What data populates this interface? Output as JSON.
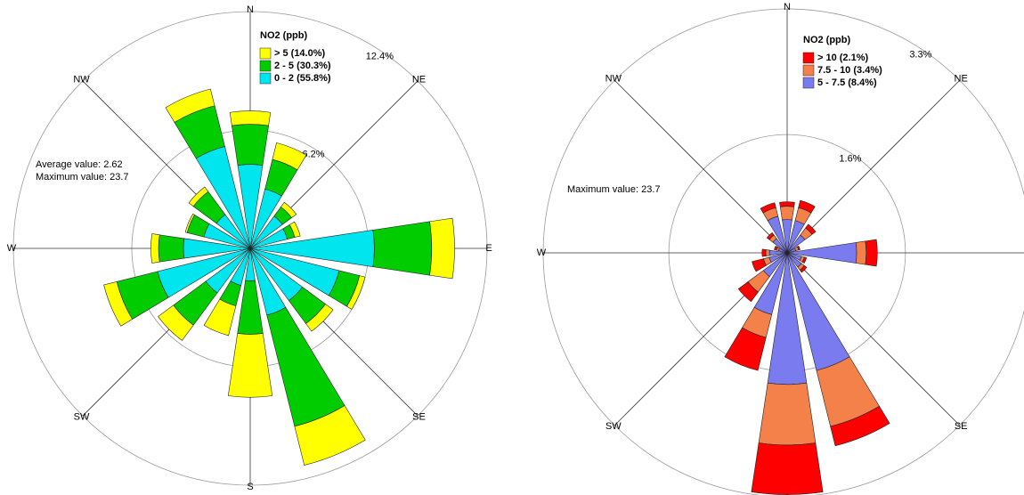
{
  "chart_data": [
    {
      "type": "wind-rose",
      "legend_title": "NO2 (ppb)",
      "categories": [
        "N",
        null,
        "NE",
        null,
        "E",
        null,
        "SE",
        null,
        "S",
        null,
        "SW",
        null,
        "W",
        null,
        "NW",
        null
      ],
      "series": [
        {
          "name": "> 5 (14.0%)",
          "color": "#ffff00",
          "values": [
            0.7,
            0.9,
            0.3,
            0.3,
            1.2,
            0.3,
            0.5,
            2.1,
            3.3,
            1.6,
            1.0,
            0.7,
            0.4,
            0.1,
            0.3,
            0.9
          ]
        },
        {
          "name": "2 - 5 (30.3%)",
          "color": "#00cc00",
          "values": [
            2.1,
            1.6,
            0.6,
            0.4,
            3.0,
            1.1,
            1.5,
            6.0,
            2.8,
            1.1,
            2.1,
            2.2,
            1.3,
            0.9,
            1.5,
            2.2
          ]
        },
        {
          "name": "0 - 2 (55.8%)",
          "color": "#00e5ee",
          "values": [
            4.4,
            3.2,
            2.1,
            2.0,
            6.5,
            4.8,
            3.4,
            3.6,
            1.7,
            2.0,
            2.9,
            5.0,
            3.5,
            2.5,
            2.2,
            5.5
          ]
        }
      ],
      "rlim": [
        0,
        12.4
      ],
      "rticks": [
        {
          "value": 6.2,
          "label": "6.2%"
        },
        {
          "value": 12.4,
          "label": "12.4%"
        }
      ],
      "annotations": [
        "Average value:  2.62",
        "Maximum value:  23.7"
      ]
    },
    {
      "type": "wind-rose",
      "legend_title": "NO2 (ppb)",
      "categories": [
        "N",
        null,
        "NE",
        null,
        "E",
        null,
        "SE",
        null,
        "S",
        null,
        "SW",
        null,
        "W",
        null,
        "NW",
        null
      ],
      "series": [
        {
          "name": "> 10 (2.1%)",
          "color": "#ff0000",
          "values": [
            0.06,
            0.1,
            0.06,
            0.02,
            0.15,
            0.03,
            0.04,
            0.27,
            0.67,
            0.46,
            0.16,
            0.16,
            0.05,
            0.03,
            0.04,
            0.07
          ]
        },
        {
          "name": "7.5 - 10 (3.4%)",
          "color": "#f4804a",
          "values": [
            0.18,
            0.18,
            0.12,
            0.04,
            0.13,
            0.04,
            0.05,
            0.78,
            0.82,
            0.32,
            0.26,
            0.08,
            0.05,
            0.03,
            0.06,
            0.12
          ]
        },
        {
          "name": "5 - 7.5 (8.4%)",
          "color": "#7b7bf0",
          "values": [
            0.45,
            0.45,
            0.3,
            0.12,
            0.94,
            0.2,
            0.24,
            1.64,
            1.78,
            0.86,
            0.4,
            0.25,
            0.24,
            0.12,
            0.24,
            0.51
          ]
        }
      ],
      "rlim": [
        0,
        3.3
      ],
      "rticks": [
        {
          "value": 1.6,
          "label": "1.6%"
        },
        {
          "value": 3.3,
          "label": "3.3%"
        }
      ],
      "annotations": [
        "Maximum value:  23.7"
      ]
    }
  ]
}
